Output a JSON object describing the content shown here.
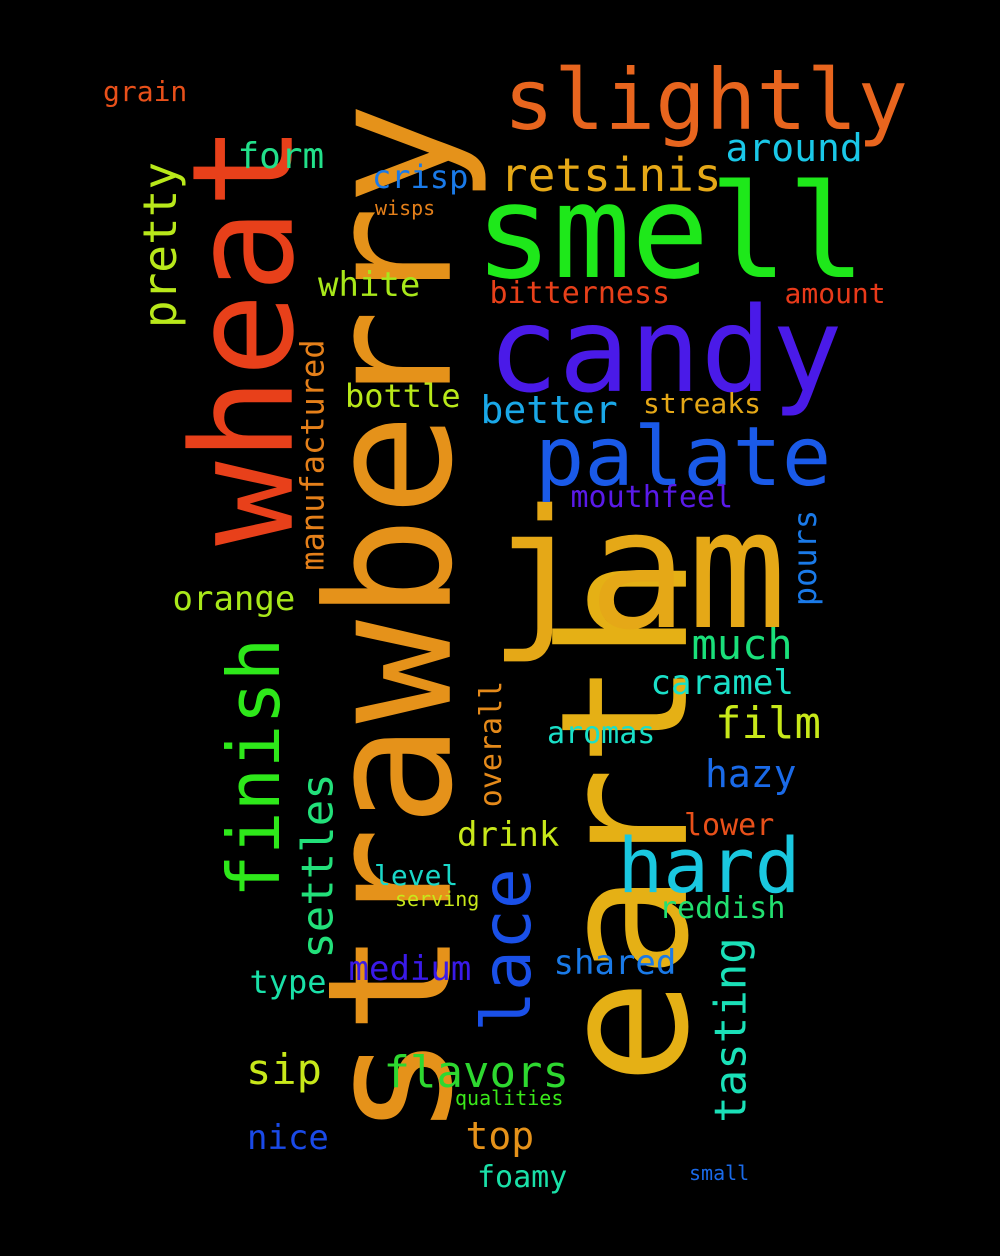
{
  "background_color": "#000000",
  "words": [
    {
      "text": "strawberry",
      "color": "#E5921A",
      "orientation": "vertical"
    },
    {
      "text": "earth",
      "color": "#E5B015",
      "orientation": "vertical"
    },
    {
      "text": "jam",
      "color": "#E5A817",
      "orientation": "horizontal"
    },
    {
      "text": "wheat",
      "color": "#E8401A",
      "orientation": "vertical"
    },
    {
      "text": "smell",
      "color": "#1EE81A",
      "orientation": "horizontal"
    },
    {
      "text": "candy",
      "color": "#4A1AE8",
      "orientation": "horizontal"
    },
    {
      "text": "slightly",
      "color": "#E8651E",
      "orientation": "horizontal"
    },
    {
      "text": "palate",
      "color": "#1A5AE8",
      "orientation": "horizontal"
    },
    {
      "text": "hard",
      "color": "#1AC8E0",
      "orientation": "horizontal"
    },
    {
      "text": "finish",
      "color": "#2EE81A",
      "orientation": "vertical"
    },
    {
      "text": "lace",
      "color": "#1A50E8",
      "orientation": "vertical"
    },
    {
      "text": "retsinis",
      "color": "#E5A817",
      "orientation": "horizontal"
    },
    {
      "text": "pretty",
      "color": "#B8E81A",
      "orientation": "vertical"
    },
    {
      "text": "settles",
      "color": "#22E07A",
      "orientation": "vertical"
    },
    {
      "text": "flavors",
      "color": "#2ED830",
      "orientation": "horizontal"
    },
    {
      "text": "tasting",
      "color": "#1AE0B8",
      "orientation": "vertical"
    },
    {
      "text": "film",
      "color": "#C8E81A",
      "orientation": "horizontal"
    },
    {
      "text": "much",
      "color": "#1AE07A",
      "orientation": "horizontal"
    },
    {
      "text": "sip",
      "color": "#C8E81A",
      "orientation": "horizontal"
    },
    {
      "text": "around",
      "color": "#1AC8E8",
      "orientation": "horizontal"
    },
    {
      "text": "form",
      "color": "#22E08A",
      "orientation": "horizontal"
    },
    {
      "text": "better",
      "color": "#1AA8E8",
      "orientation": "horizontal"
    },
    {
      "text": "hazy",
      "color": "#1A6AE8",
      "orientation": "horizontal"
    },
    {
      "text": "top",
      "color": "#E5921A",
      "orientation": "horizontal"
    },
    {
      "text": "manufactured",
      "color": "#E5801A",
      "orientation": "vertical"
    },
    {
      "text": "white",
      "color": "#A8E81A",
      "orientation": "horizontal"
    },
    {
      "text": "orange",
      "color": "#A8E81A",
      "orientation": "horizontal"
    },
    {
      "text": "caramel",
      "color": "#1AE0C8",
      "orientation": "horizontal"
    },
    {
      "text": "drink",
      "color": "#C8E81A",
      "orientation": "horizontal"
    },
    {
      "text": "medium",
      "color": "#3A1AE8",
      "orientation": "horizontal"
    },
    {
      "text": "shared",
      "color": "#1A7AE8",
      "orientation": "horizontal"
    },
    {
      "text": "nice",
      "color": "#1A4AE8",
      "orientation": "horizontal"
    },
    {
      "text": "pours",
      "color": "#1A7AE8",
      "orientation": "vertical"
    },
    {
      "text": "bottle",
      "color": "#B8E81A",
      "orientation": "horizontal"
    },
    {
      "text": "crisp",
      "color": "#1A7AE8",
      "orientation": "horizontal"
    },
    {
      "text": "bitterness",
      "color": "#E8401A",
      "orientation": "horizontal"
    },
    {
      "text": "mouthfeel",
      "color": "#5A1AE8",
      "orientation": "horizontal"
    },
    {
      "text": "overall",
      "color": "#E58A1A",
      "orientation": "vertical"
    },
    {
      "text": "aromas",
      "color": "#1AE0C8",
      "orientation": "horizontal"
    },
    {
      "text": "lower",
      "color": "#E8501A",
      "orientation": "horizontal"
    },
    {
      "text": "reddish",
      "color": "#22E070",
      "orientation": "horizontal"
    },
    {
      "text": "type",
      "color": "#1AE0A8",
      "orientation": "horizontal"
    },
    {
      "text": "foamy",
      "color": "#1AE0A8",
      "orientation": "horizontal"
    },
    {
      "text": "streaks",
      "color": "#E5A817",
      "orientation": "horizontal"
    },
    {
      "text": "amount",
      "color": "#E83A1A",
      "orientation": "horizontal"
    },
    {
      "text": "level",
      "color": "#1AD8C8",
      "orientation": "horizontal"
    },
    {
      "text": "grain",
      "color": "#E8501A",
      "orientation": "horizontal"
    },
    {
      "text": "wisps",
      "color": "#E5801A",
      "orientation": "horizontal"
    },
    {
      "text": "serving",
      "color": "#C8E81A",
      "orientation": "horizontal"
    },
    {
      "text": "qualities",
      "color": "#3AE81A",
      "orientation": "horizontal"
    },
    {
      "text": "small",
      "color": "#1A6AE8",
      "orientation": "horizontal"
    }
  ]
}
